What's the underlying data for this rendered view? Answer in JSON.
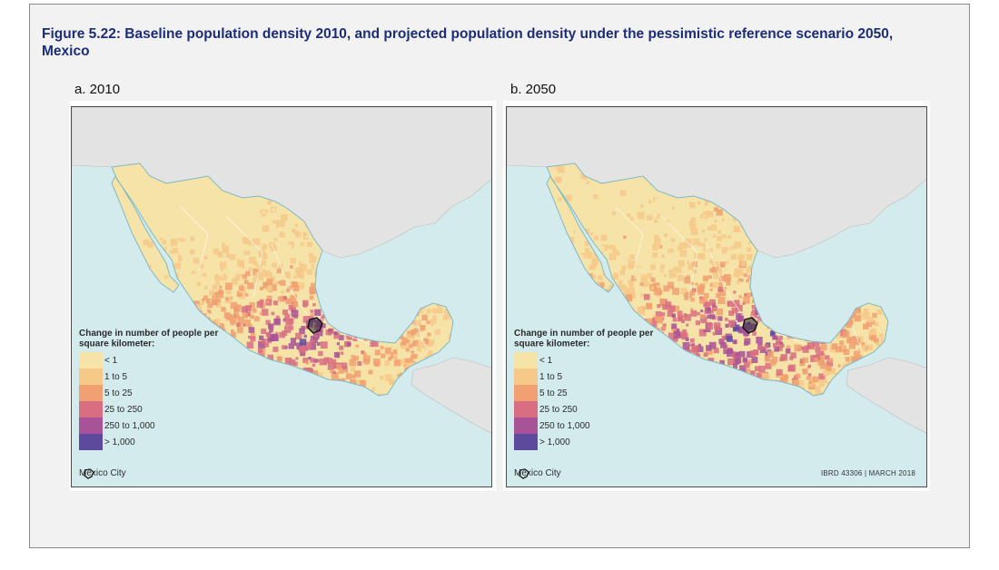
{
  "figure": {
    "title": "Figure 5.22: Baseline population density 2010, and projected population density under the pessimistic reference scenario 2050, Mexico"
  },
  "panels": [
    {
      "label": "a. 2010",
      "variant": "baseline"
    },
    {
      "label": "b. 2050",
      "variant": "projected"
    }
  ],
  "legend": {
    "title": "Change in number of people per square kilometer:",
    "classes": [
      {
        "label": "< 1",
        "color": "#f6e3a8"
      },
      {
        "label": "1 to 5",
        "color": "#f6c989"
      },
      {
        "label": "5 to 25",
        "color": "#f1a071"
      },
      {
        "label": "25 to 250",
        "color": "#d96e82"
      },
      {
        "label": "250 to 1,000",
        "color": "#a85298"
      },
      {
        "label": "> 1,000",
        "color": "#5e4a9c"
      }
    ],
    "city_label": "Mexico City"
  },
  "credit": "IBRD 43306 | MARCH 2018",
  "colors": {
    "ocean": "#d4ebee",
    "land_other": "#e3e3e3",
    "title": "#1b2d7a"
  }
}
